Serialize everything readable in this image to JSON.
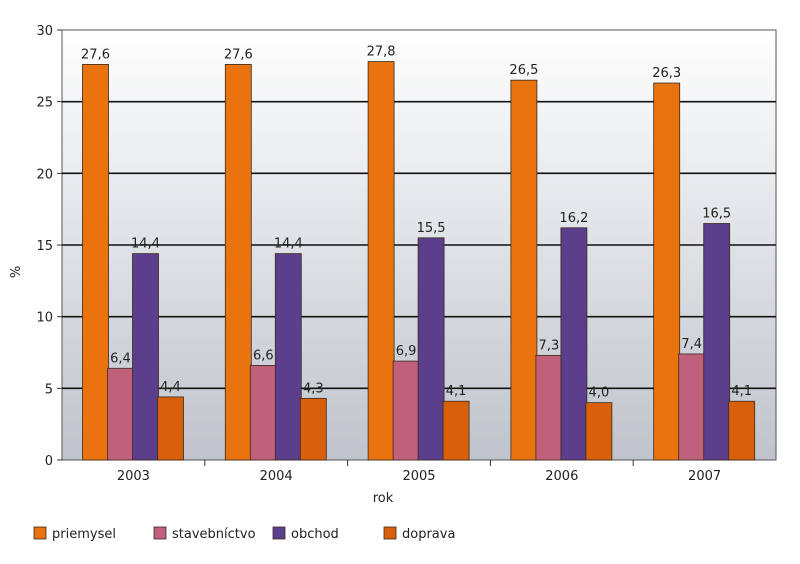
{
  "chart_data": {
    "type": "bar",
    "categories": [
      "2003",
      "2004",
      "2005",
      "2006",
      "2007"
    ],
    "series": [
      {
        "name": "priemysel",
        "values": [
          27.6,
          27.6,
          27.8,
          26.5,
          26.3
        ],
        "labels": [
          "27,6",
          "27,6",
          "27,8",
          "26,5",
          "26,3"
        ],
        "color": "#E8730F"
      },
      {
        "name": "stavebníctvo",
        "values": [
          6.4,
          6.6,
          6.9,
          7.3,
          7.4
        ],
        "labels": [
          "6,4",
          "6,6",
          "6,9",
          "7,3",
          "7,4"
        ],
        "color": "#C0607A"
      },
      {
        "name": "obchod",
        "values": [
          14.4,
          14.4,
          15.5,
          16.2,
          16.5
        ],
        "labels": [
          "14,4",
          "14,4",
          "15,5",
          "16,2",
          "16,5"
        ],
        "color": "#5B3F8C"
      },
      {
        "name": "doprava",
        "values": [
          4.4,
          4.3,
          4.1,
          4.0,
          4.1
        ],
        "labels": [
          "4,4",
          "4,3",
          "4,1",
          "4,0",
          "4,1"
        ],
        "color": "#D8600A"
      }
    ],
    "xlabel": "rok",
    "ylabel": "%",
    "ylim": [
      0,
      30
    ],
    "yticks": [
      "0",
      "5",
      "10",
      "15",
      "20",
      "25",
      "30"
    ],
    "grid": true,
    "legend": "bottom"
  }
}
